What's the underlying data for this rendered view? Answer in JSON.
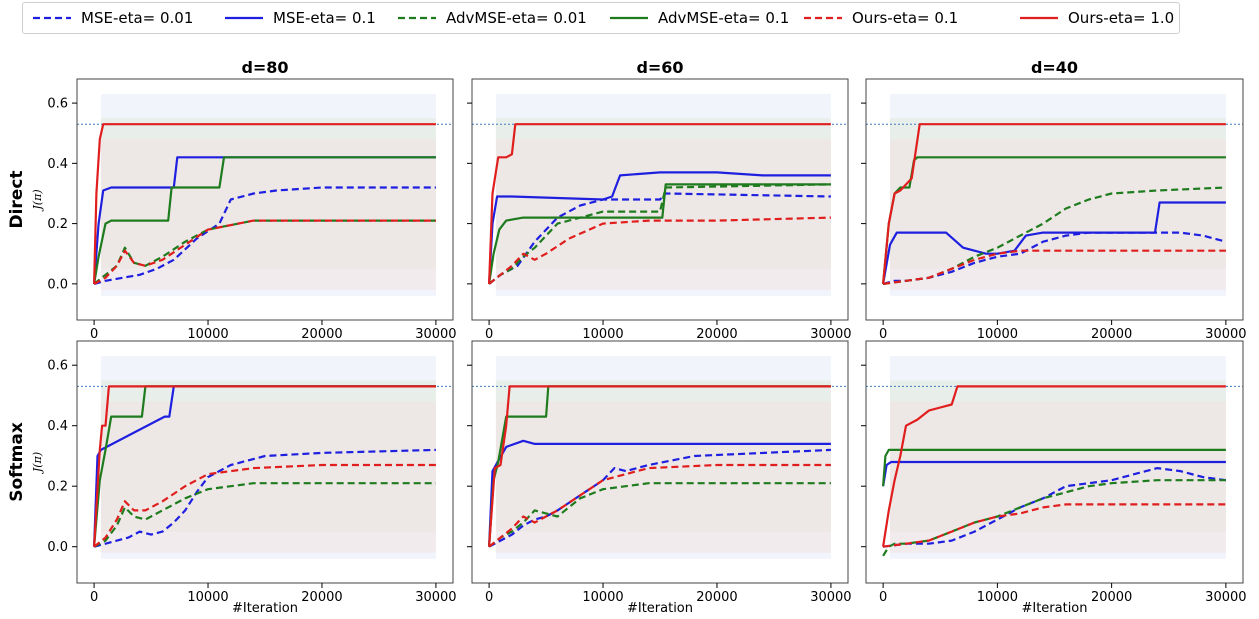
{
  "legend": {
    "items": [
      {
        "label": "MSE-eta= 0.01",
        "color": "#1f1fe0",
        "dash": true
      },
      {
        "label": "MSE-eta= 0.1",
        "color": "#1f1fe0",
        "dash": false
      },
      {
        "label": "AdvMSE-eta= 0.01",
        "color": "#1e7b1e",
        "dash": true
      },
      {
        "label": "AdvMSE-eta= 0.1",
        "color": "#1e7b1e",
        "dash": false
      },
      {
        "label": "Ours-eta= 0.1",
        "color": "#e01e1e",
        "dash": true
      },
      {
        "label": "Ours-eta= 1.0",
        "color": "#e01e1e",
        "dash": false
      }
    ]
  },
  "row_labels": [
    "Direct",
    "Softmax"
  ],
  "col_titles": [
    "d=80",
    "d=60",
    "d=40"
  ],
  "ylabel": "J(π)",
  "xlabel": "#Iteration",
  "chart_data": {
    "type": "line",
    "xlim": [
      -1500,
      31500
    ],
    "ylim": [
      -0.12,
      0.68
    ],
    "xticks": [
      0,
      10000,
      20000,
      30000
    ],
    "yticks": [
      0.0,
      0.2,
      0.4,
      0.6
    ],
    "reference_line": 0.53,
    "series_names": [
      "MSE-eta= 0.01",
      "MSE-eta= 0.1",
      "AdvMSE-eta= 0.01",
      "AdvMSE-eta= 0.1",
      "Ours-eta= 0.1",
      "Ours-eta= 1.0"
    ],
    "panels": [
      {
        "row": "Direct",
        "col": "d=80",
        "series": [
          {
            "x": [
              0,
              1000,
              2500,
              4000,
              5500,
              7000,
              9000,
              11000,
              12000,
              14000,
              16000,
              20000,
              30000
            ],
            "y": [
              0,
              0.01,
              0.02,
              0.03,
              0.05,
              0.08,
              0.15,
              0.2,
              0.28,
              0.3,
              0.31,
              0.32,
              0.32
            ]
          },
          {
            "x": [
              0,
              400,
              800,
              1500,
              7000,
              7300,
              9000,
              30000
            ],
            "y": [
              0,
              0.2,
              0.31,
              0.32,
              0.32,
              0.42,
              0.42,
              0.42
            ]
          },
          {
            "x": [
              0,
              1000,
              2000,
              2700,
              3500,
              4500,
              6000,
              8000,
              10000,
              14000,
              20000,
              30000
            ],
            "y": [
              0,
              0.03,
              0.06,
              0.12,
              0.07,
              0.06,
              0.09,
              0.14,
              0.18,
              0.21,
              0.21,
              0.21
            ]
          },
          {
            "x": [
              0,
              400,
              1000,
              1500,
              6500,
              6800,
              11000,
              11400,
              30000
            ],
            "y": [
              0,
              0.09,
              0.2,
              0.21,
              0.21,
              0.32,
              0.32,
              0.42,
              0.42
            ]
          },
          {
            "x": [
              0,
              1000,
              2000,
              2700,
              3500,
              4500,
              6000,
              8000,
              10000,
              14000,
              20000,
              30000
            ],
            "y": [
              0,
              0.02,
              0.06,
              0.11,
              0.07,
              0.06,
              0.08,
              0.13,
              0.18,
              0.21,
              0.21,
              0.21
            ]
          },
          {
            "x": [
              0,
              200,
              500,
              800,
              1100,
              30000
            ],
            "y": [
              0,
              0.3,
              0.48,
              0.53,
              0.53,
              0.53
            ]
          }
        ]
      },
      {
        "row": "Direct",
        "col": "d=60",
        "series": [
          {
            "x": [
              0,
              1000,
              2500,
              4000,
              6000,
              8000,
              10000,
              15000,
              15500,
              30000
            ],
            "y": [
              0,
              0.03,
              0.06,
              0.14,
              0.22,
              0.26,
              0.28,
              0.28,
              0.3,
              0.29
            ]
          },
          {
            "x": [
              0,
              300,
              700,
              2000,
              10000,
              10800,
              11500,
              15000,
              20000,
              24000,
              30000
            ],
            "y": [
              0,
              0.2,
              0.29,
              0.29,
              0.28,
              0.29,
              0.36,
              0.37,
              0.37,
              0.36,
              0.36
            ]
          },
          {
            "x": [
              0,
              1000,
              2000,
              3000,
              4000,
              6000,
              10000,
              15000,
              15500,
              30000
            ],
            "y": [
              0,
              0.03,
              0.05,
              0.09,
              0.12,
              0.2,
              0.24,
              0.24,
              0.32,
              0.33
            ]
          },
          {
            "x": [
              0,
              400,
              900,
              1500,
              3000,
              15200,
              15500,
              30000
            ],
            "y": [
              0,
              0.1,
              0.18,
              0.21,
              0.22,
              0.22,
              0.33,
              0.33
            ]
          },
          {
            "x": [
              0,
              1000,
              2000,
              3000,
              4000,
              5000,
              7000,
              10000,
              14000,
              20000,
              30000
            ],
            "y": [
              0,
              0.03,
              0.06,
              0.1,
              0.08,
              0.1,
              0.15,
              0.2,
              0.21,
              0.21,
              0.22
            ]
          },
          {
            "x": [
              0,
              300,
              800,
              1500,
              2000,
              2300,
              30000
            ],
            "y": [
              0,
              0.3,
              0.42,
              0.42,
              0.43,
              0.53,
              0.53
            ]
          }
        ]
      },
      {
        "row": "Direct",
        "col": "d=40",
        "series": [
          {
            "x": [
              0,
              1000,
              2000,
              4000,
              6000,
              8000,
              10000,
              12000,
              14000,
              16000,
              18000,
              20000,
              22000,
              24000,
              26000,
              28000,
              30000
            ],
            "y": [
              0,
              0.01,
              0.01,
              0.02,
              0.04,
              0.07,
              0.09,
              0.1,
              0.14,
              0.16,
              0.17,
              0.17,
              0.17,
              0.17,
              0.17,
              0.16,
              0.14
            ]
          },
          {
            "x": [
              0,
              600,
              1200,
              2000,
              5500,
              7000,
              9000,
              10000,
              11500,
              12500,
              14000,
              23800,
              24200,
              30000
            ],
            "y": [
              0,
              0.13,
              0.17,
              0.17,
              0.17,
              0.12,
              0.1,
              0.1,
              0.11,
              0.16,
              0.17,
              0.17,
              0.27,
              0.27
            ]
          },
          {
            "x": [
              0,
              2000,
              4000,
              6000,
              8000,
              10000,
              12000,
              14000,
              16000,
              18000,
              20000,
              24000,
              30000
            ],
            "y": [
              0,
              0.01,
              0.02,
              0.05,
              0.09,
              0.12,
              0.16,
              0.2,
              0.25,
              0.28,
              0.3,
              0.31,
              0.32
            ]
          },
          {
            "x": [
              0,
              500,
              1000,
              1500,
              2300,
              2700,
              3000,
              30000
            ],
            "y": [
              0,
              0.2,
              0.3,
              0.32,
              0.32,
              0.41,
              0.42,
              0.42
            ]
          },
          {
            "x": [
              0,
              2000,
              4000,
              6000,
              8000,
              10000,
              12000,
              14000,
              18000,
              30000
            ],
            "y": [
              0,
              0.01,
              0.02,
              0.05,
              0.08,
              0.1,
              0.11,
              0.11,
              0.11,
              0.11
            ]
          },
          {
            "x": [
              0,
              500,
              1000,
              1500,
              2500,
              3200,
              30000
            ],
            "y": [
              0,
              0.2,
              0.3,
              0.31,
              0.35,
              0.53,
              0.53
            ]
          }
        ]
      },
      {
        "row": "Softmax",
        "col": "d=80",
        "series": [
          {
            "x": [
              0,
              1000,
              2000,
              3000,
              4000,
              5000,
              6000,
              7000,
              8000,
              9000,
              10000,
              12000,
              15000,
              20000,
              30000
            ],
            "y": [
              0,
              0.01,
              0.02,
              0.03,
              0.05,
              0.04,
              0.05,
              0.08,
              0.12,
              0.18,
              0.23,
              0.27,
              0.3,
              0.31,
              0.32
            ]
          },
          {
            "x": [
              0,
              300,
              600,
              6200,
              6600,
              7000,
              30000
            ],
            "y": [
              0,
              0.3,
              0.32,
              0.43,
              0.43,
              0.53,
              0.53
            ]
          },
          {
            "x": [
              0,
              1000,
              2000,
              2700,
              3500,
              4500,
              6000,
              8000,
              10000,
              14000,
              20000,
              30000
            ],
            "y": [
              0,
              0.02,
              0.07,
              0.13,
              0.1,
              0.09,
              0.12,
              0.16,
              0.19,
              0.21,
              0.21,
              0.21
            ]
          },
          {
            "x": [
              0,
              500,
              1000,
              1500,
              4200,
              4500,
              30000
            ],
            "y": [
              0,
              0.22,
              0.32,
              0.43,
              0.43,
              0.53,
              0.53
            ]
          },
          {
            "x": [
              0,
              1000,
              2000,
              2700,
              3500,
              4500,
              6000,
              8000,
              10000,
              14000,
              20000,
              30000
            ],
            "y": [
              0,
              0.03,
              0.09,
              0.15,
              0.12,
              0.12,
              0.15,
              0.2,
              0.24,
              0.26,
              0.27,
              0.27
            ]
          },
          {
            "x": [
              0,
              500,
              700,
              1000,
              1300,
              30000
            ],
            "y": [
              0,
              0.32,
              0.4,
              0.4,
              0.53,
              0.53
            ]
          }
        ]
      },
      {
        "row": "Softmax",
        "col": "d=60",
        "series": [
          {
            "x": [
              0,
              1000,
              2000,
              3000,
              4000,
              5000,
              6000,
              8000,
              10000,
              11000,
              12000,
              14000,
              18000,
              30000
            ],
            "y": [
              0,
              0.02,
              0.04,
              0.07,
              0.09,
              0.1,
              0.12,
              0.17,
              0.22,
              0.26,
              0.25,
              0.27,
              0.3,
              0.32
            ]
          },
          {
            "x": [
              0,
              300,
              600,
              1500,
              3000,
              4000,
              5000,
              6000,
              30000
            ],
            "y": [
              0,
              0.25,
              0.27,
              0.33,
              0.35,
              0.34,
              0.34,
              0.34,
              0.34
            ]
          },
          {
            "x": [
              0,
              1000,
              2000,
              3000,
              4000,
              6000,
              8000,
              10000,
              14000,
              20000,
              30000
            ],
            "y": [
              0,
              0.03,
              0.05,
              0.08,
              0.12,
              0.1,
              0.16,
              0.19,
              0.21,
              0.21,
              0.21
            ]
          },
          {
            "x": [
              0,
              400,
              800,
              1500,
              5000,
              5200,
              30000
            ],
            "y": [
              0,
              0.22,
              0.28,
              0.43,
              0.43,
              0.53,
              0.53
            ]
          },
          {
            "x": [
              0,
              1000,
              2000,
              3000,
              4000,
              6000,
              8000,
              10000,
              14000,
              20000,
              30000
            ],
            "y": [
              0,
              0.03,
              0.06,
              0.1,
              0.08,
              0.12,
              0.17,
              0.22,
              0.26,
              0.27,
              0.27
            ]
          },
          {
            "x": [
              0,
              500,
              1000,
              1500,
              1800,
              30000
            ],
            "y": [
              0,
              0.26,
              0.27,
              0.4,
              0.53,
              0.53
            ]
          }
        ]
      },
      {
        "row": "Softmax",
        "col": "d=40",
        "series": [
          {
            "x": [
              0,
              2000,
              4000,
              6000,
              8000,
              10000,
              12000,
              14000,
              16000,
              18000,
              20000,
              22000,
              24000,
              26000,
              28000,
              30000
            ],
            "y": [
              0,
              0.01,
              0.01,
              0.02,
              0.05,
              0.09,
              0.13,
              0.16,
              0.2,
              0.21,
              0.22,
              0.24,
              0.26,
              0.25,
              0.23,
              0.22
            ]
          },
          {
            "x": [
              0,
              300,
              700,
              30000
            ],
            "y": [
              0.2,
              0.27,
              0.28,
              0.28
            ]
          },
          {
            "x": [
              0,
              500,
              1000,
              2000,
              4000,
              6000,
              8000,
              10000,
              12000,
              14000,
              16000,
              18000,
              20000,
              24000,
              30000
            ],
            "y": [
              -0.03,
              0,
              0.01,
              0.01,
              0.02,
              0.05,
              0.08,
              0.1,
              0.13,
              0.16,
              0.18,
              0.2,
              0.21,
              0.22,
              0.22
            ]
          },
          {
            "x": [
              0,
              200,
              500,
              30000
            ],
            "y": [
              0.2,
              0.3,
              0.32,
              0.32
            ]
          },
          {
            "x": [
              0,
              2000,
              4000,
              6000,
              8000,
              10000,
              12000,
              14000,
              16000,
              20000,
              30000
            ],
            "y": [
              0,
              0.01,
              0.02,
              0.05,
              0.08,
              0.1,
              0.11,
              0.13,
              0.14,
              0.14,
              0.14
            ]
          },
          {
            "x": [
              0,
              500,
              1000,
              1500,
              2000,
              3000,
              4000,
              5000,
              6000,
              6500,
              30000
            ],
            "y": [
              0,
              0.12,
              0.22,
              0.3,
              0.4,
              0.42,
              0.45,
              0.46,
              0.47,
              0.53,
              0.53
            ]
          }
        ]
      }
    ]
  }
}
